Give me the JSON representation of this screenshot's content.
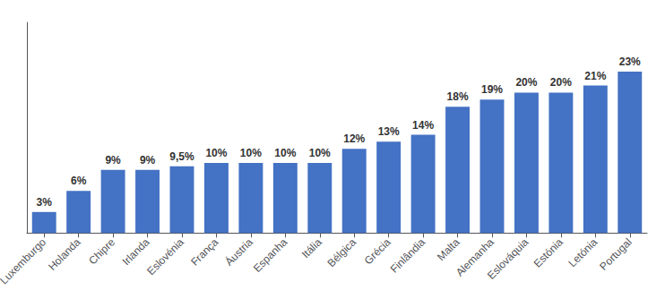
{
  "chart_data": {
    "type": "bar",
    "categories": [
      "Luxemburgo",
      "Holanda",
      "Chipre",
      "Irlanda",
      "Eslovénia",
      "França",
      "Áustria",
      "Espanha",
      "Itália",
      "Bélgica",
      "Grécia",
      "Finlândia",
      "Malta",
      "Alemanha",
      "Eslováquia",
      "Estónia",
      "Letónia",
      "Portugal"
    ],
    "values": [
      3,
      6,
      9,
      9,
      9.5,
      10,
      10,
      10,
      10,
      12,
      13,
      14,
      18,
      19,
      20,
      20,
      21,
      23
    ],
    "value_labels": [
      "3%",
      "6%",
      "9%",
      "9%",
      "9,5%",
      "10%",
      "10%",
      "10%",
      "10%",
      "12%",
      "13%",
      "14%",
      "18%",
      "19%",
      "20%",
      "20%",
      "21%",
      "23%"
    ],
    "data_labels": true,
    "color": "#4472C4",
    "ylim": [
      0,
      30
    ],
    "tick_labels": "x",
    "grid": false
  }
}
